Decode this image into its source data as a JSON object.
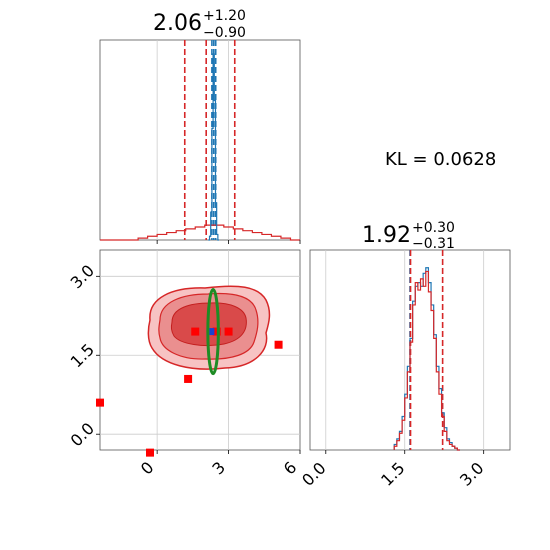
{
  "kl_text": "KL = 0.0628",
  "chart_data": [
    {
      "panel": "marginal-x",
      "type": "histogram",
      "title_value": "2.06",
      "title_plus": "+1.20",
      "title_minus": "−0.90",
      "xlim": [
        -2.4,
        6.0
      ],
      "grid": true,
      "series": [
        {
          "color": "#d62728",
          "style": "step",
          "x": [
            -2.4,
            -2.0,
            -1.6,
            -1.2,
            -0.8,
            -0.4,
            0.0,
            0.4,
            0.8,
            1.2,
            1.6,
            2.0,
            2.4,
            2.8,
            3.2,
            3.6,
            4.0,
            4.4,
            4.8,
            5.2,
            5.6
          ],
          "values": [
            0,
            0,
            0,
            0,
            0.01,
            0.02,
            0.03,
            0.04,
            0.05,
            0.06,
            0.07,
            0.08,
            0.08,
            0.07,
            0.06,
            0.05,
            0.04,
            0.03,
            0.02,
            0.01,
            0
          ]
        },
        {
          "color": "#1f77b4",
          "style": "step",
          "x": [
            2.15,
            2.2,
            2.25,
            2.3,
            2.35,
            2.4,
            2.45,
            2.5,
            2.55
          ],
          "values": [
            0,
            0.02,
            0.15,
            0.6,
            1.0,
            0.75,
            0.2,
            0.03,
            0
          ]
        }
      ],
      "vlines_red": [
        1.16,
        2.06,
        3.26
      ],
      "vlines_blue": [
        2.3,
        2.38,
        2.46
      ]
    },
    {
      "panel": "joint",
      "type": "contour",
      "xlim": [
        -2.4,
        6.0
      ],
      "ylim": [
        -0.3,
        3.5
      ],
      "xticks": [
        "0",
        "3",
        "6"
      ],
      "yticks": [
        "0.0",
        "1.5",
        "3.0"
      ],
      "grid": true,
      "center": [
        2.3,
        1.95
      ],
      "ellipse_green": {
        "cx": 2.35,
        "cy": 1.95,
        "rx": 0.22,
        "ry": 0.8
      },
      "red_points": [
        [
          -2.4,
          0.6
        ],
        [
          -0.3,
          -0.35
        ],
        [
          1.3,
          1.05
        ],
        [
          1.6,
          1.95
        ],
        [
          2.5,
          1.95
        ],
        [
          3.0,
          1.95
        ],
        [
          5.1,
          1.7
        ]
      ],
      "blue_point": [
        2.3,
        1.95
      ]
    },
    {
      "panel": "marginal-y",
      "type": "histogram",
      "title_value": "1.92",
      "title_plus": "+0.30",
      "title_minus": "−0.31",
      "xlim": [
        -0.3,
        3.5
      ],
      "xticks": [
        "0.0",
        "1.5",
        "3.0"
      ],
      "grid": true,
      "series": [
        {
          "color": "#1f77b4",
          "style": "step",
          "x": [
            1.3,
            1.35,
            1.4,
            1.45,
            1.5,
            1.55,
            1.6,
            1.65,
            1.7,
            1.75,
            1.8,
            1.85,
            1.9,
            1.95,
            2.0,
            2.05,
            2.1,
            2.15,
            2.2,
            2.25,
            2.3,
            2.35,
            2.4,
            2.45,
            2.5
          ],
          "values": [
            0.03,
            0.06,
            0.1,
            0.18,
            0.3,
            0.45,
            0.6,
            0.8,
            0.88,
            0.9,
            0.88,
            0.95,
            0.98,
            0.9,
            0.78,
            0.62,
            0.45,
            0.33,
            0.2,
            0.12,
            0.06,
            0.04,
            0.02,
            0.01,
            0
          ]
        },
        {
          "color": "#d62728",
          "style": "step",
          "x": [
            1.3,
            1.35,
            1.4,
            1.45,
            1.5,
            1.55,
            1.6,
            1.65,
            1.7,
            1.75,
            1.8,
            1.85,
            1.9,
            1.95,
            2.0,
            2.05,
            2.1,
            2.15,
            2.2,
            2.25,
            2.3,
            2.35,
            2.4,
            2.45,
            2.5
          ],
          "values": [
            0.02,
            0.05,
            0.09,
            0.16,
            0.28,
            0.42,
            0.58,
            0.78,
            0.9,
            0.86,
            0.92,
            0.88,
            0.96,
            0.85,
            0.75,
            0.6,
            0.42,
            0.3,
            0.18,
            0.1,
            0.05,
            0.03,
            0.02,
            0.01,
            0
          ]
        }
      ],
      "vlines_red": [
        1.61,
        2.22
      ],
      "vlines_blue": [
        1.6
      ]
    }
  ]
}
